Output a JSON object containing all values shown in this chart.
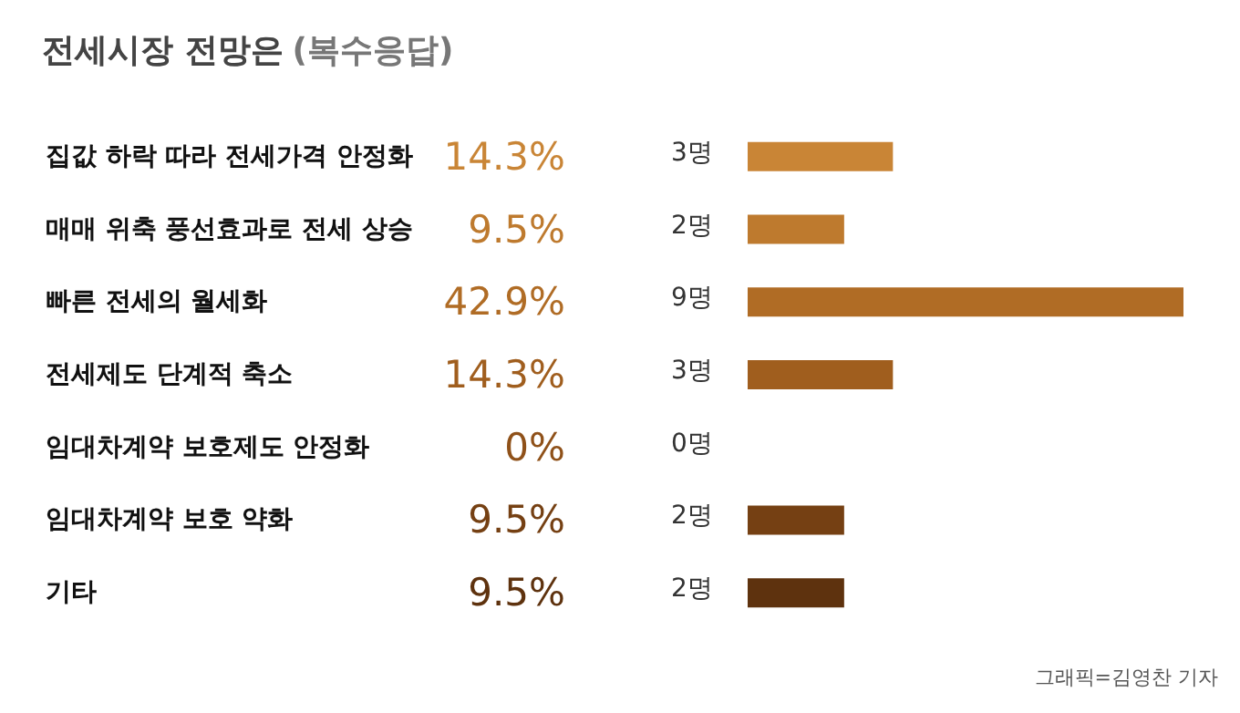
{
  "chart_data": {
    "type": "bar",
    "orientation": "horizontal",
    "title": "전세시장 전망은",
    "subtitle": "(복수응답)",
    "categories": [
      "집값 하락 따라 전세가격 안정화",
      "매매 위축 풍선효과로 전세 상승",
      "빠른 전세의 월세화",
      "전세제도 단계적 축소",
      "임대차계약 보호제도 안정화",
      "임대차계약 보호 약화",
      "기타"
    ],
    "values": [
      14.3,
      9.5,
      42.9,
      14.3,
      0,
      9.5,
      9.5
    ],
    "value_labels": [
      "14.3%",
      "9.5%",
      "42.9%",
      "14.3%",
      "0%",
      "9.5%",
      "9.5%"
    ],
    "colors": [
      "#c98536",
      "#be7a2e",
      "#b06c25",
      "#a05e1e",
      "#8f5119",
      "#754013",
      "#5e320e"
    ],
    "annotations": [
      "3명",
      "2명",
      "9명",
      "3명",
      "0명",
      "2명",
      "2명",
      "그래픽=김영찬 기자"
    ]
  }
}
